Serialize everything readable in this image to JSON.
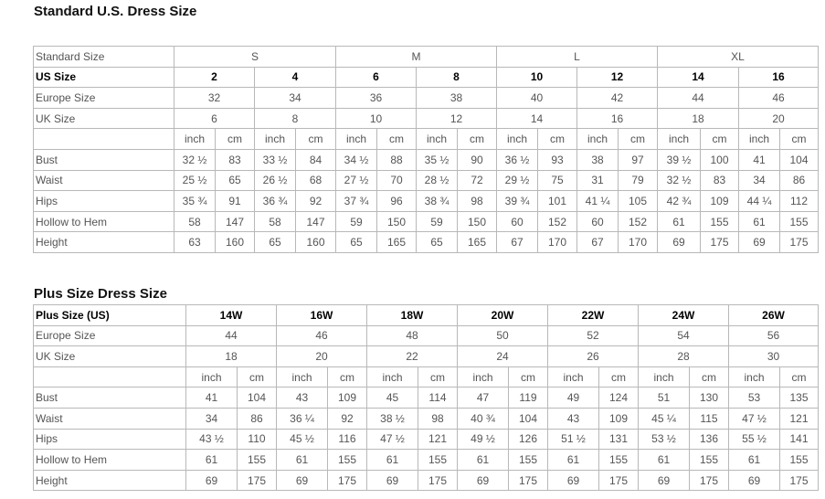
{
  "tables": [
    {
      "title": "Standard U.S. Dress Size",
      "rows": [
        {
          "label": "Standard Size",
          "cells": [
            "S",
            "M",
            "L",
            "XL"
          ]
        },
        {
          "label": "US Size",
          "cells": [
            "2",
            "4",
            "6",
            "8",
            "10",
            "12",
            "14",
            "16"
          ]
        },
        {
          "label": "Europe Size",
          "cells": [
            "32",
            "34",
            "36",
            "38",
            "40",
            "42",
            "44",
            "46"
          ]
        },
        {
          "label": "UK Size",
          "cells": [
            "6",
            "8",
            "10",
            "12",
            "14",
            "16",
            "18",
            "20"
          ]
        },
        {
          "cells": [
            "inch",
            "cm",
            "inch",
            "cm",
            "inch",
            "cm",
            "inch",
            "cm",
            "inch",
            "cm",
            "inch",
            "cm",
            "inch",
            "cm",
            "inch",
            "cm"
          ]
        },
        {
          "label": "Bust",
          "cells": [
            "32 ½",
            "83",
            "33 ½",
            "84",
            "34 ½",
            "88",
            "35 ½",
            "90",
            "36 ½",
            "93",
            "38",
            "97",
            "39 ½",
            "100",
            "41",
            "104"
          ]
        },
        {
          "label": "Waist",
          "cells": [
            "25 ½",
            "65",
            "26 ½",
            "68",
            "27 ½",
            "70",
            "28 ½",
            "72",
            "29 ½",
            "75",
            "31",
            "79",
            "32 ½",
            "83",
            "34",
            "86"
          ]
        },
        {
          "label": "Hips",
          "cells": [
            "35 ¾",
            "91",
            "36 ¾",
            "92",
            "37 ¾",
            "96",
            "38 ¾",
            "98",
            "39 ¾",
            "101",
            "41 ¼",
            "105",
            "42 ¾",
            "109",
            "44 ¼",
            "112"
          ]
        },
        {
          "label": "Hollow to Hem",
          "cells": [
            "58",
            "147",
            "58",
            "147",
            "59",
            "150",
            "59",
            "150",
            "60",
            "152",
            "60",
            "152",
            "61",
            "155",
            "61",
            "155"
          ]
        },
        {
          "label": "Height",
          "cells": [
            "63",
            "160",
            "65",
            "160",
            "65",
            "165",
            "65",
            "165",
            "67",
            "170",
            "67",
            "170",
            "69",
            "175",
            "69",
            "175"
          ]
        }
      ]
    },
    {
      "title": "Plus Size Dress Size",
      "rows": [
        {
          "label": "Plus Size (US)",
          "cells": [
            "14W",
            "16W",
            "18W",
            "20W",
            "22W",
            "24W",
            "26W"
          ]
        },
        {
          "label": "Europe Size",
          "cells": [
            "44",
            "46",
            "48",
            "50",
            "52",
            "54",
            "56"
          ]
        },
        {
          "label": "UK Size",
          "cells": [
            "18",
            "20",
            "22",
            "24",
            "26",
            "28",
            "30"
          ]
        },
        {
          "cells": [
            "inch",
            "cm",
            "inch",
            "cm",
            "inch",
            "cm",
            "inch",
            "cm",
            "inch",
            "cm",
            "inch",
            "cm",
            "inch",
            "cm"
          ]
        },
        {
          "label": "Bust",
          "cells": [
            "41",
            "104",
            "43",
            "109",
            "45",
            "114",
            "47",
            "119",
            "49",
            "124",
            "51",
            "130",
            "53",
            "135"
          ]
        },
        {
          "label": "Waist",
          "cells": [
            "34",
            "86",
            "36 ¼",
            "92",
            "38 ½",
            "98",
            "40 ¾",
            "104",
            "43",
            "109",
            "45 ¼",
            "115",
            "47 ½",
            "121"
          ]
        },
        {
          "label": "Hips",
          "cells": [
            "43 ½",
            "110",
            "45 ½",
            "116",
            "47 ½",
            "121",
            "49 ½",
            "126",
            "51 ½",
            "131",
            "53 ½",
            "136",
            "55 ½",
            "141"
          ]
        },
        {
          "label": "Hollow to Hem",
          "cells": [
            "61",
            "155",
            "61",
            "155",
            "61",
            "155",
            "61",
            "155",
            "61",
            "155",
            "61",
            "155",
            "61",
            "155"
          ]
        },
        {
          "label": "Height",
          "cells": [
            "69",
            "175",
            "69",
            "175",
            "69",
            "175",
            "69",
            "175",
            "69",
            "175",
            "69",
            "175",
            "69",
            "175"
          ]
        }
      ]
    }
  ]
}
